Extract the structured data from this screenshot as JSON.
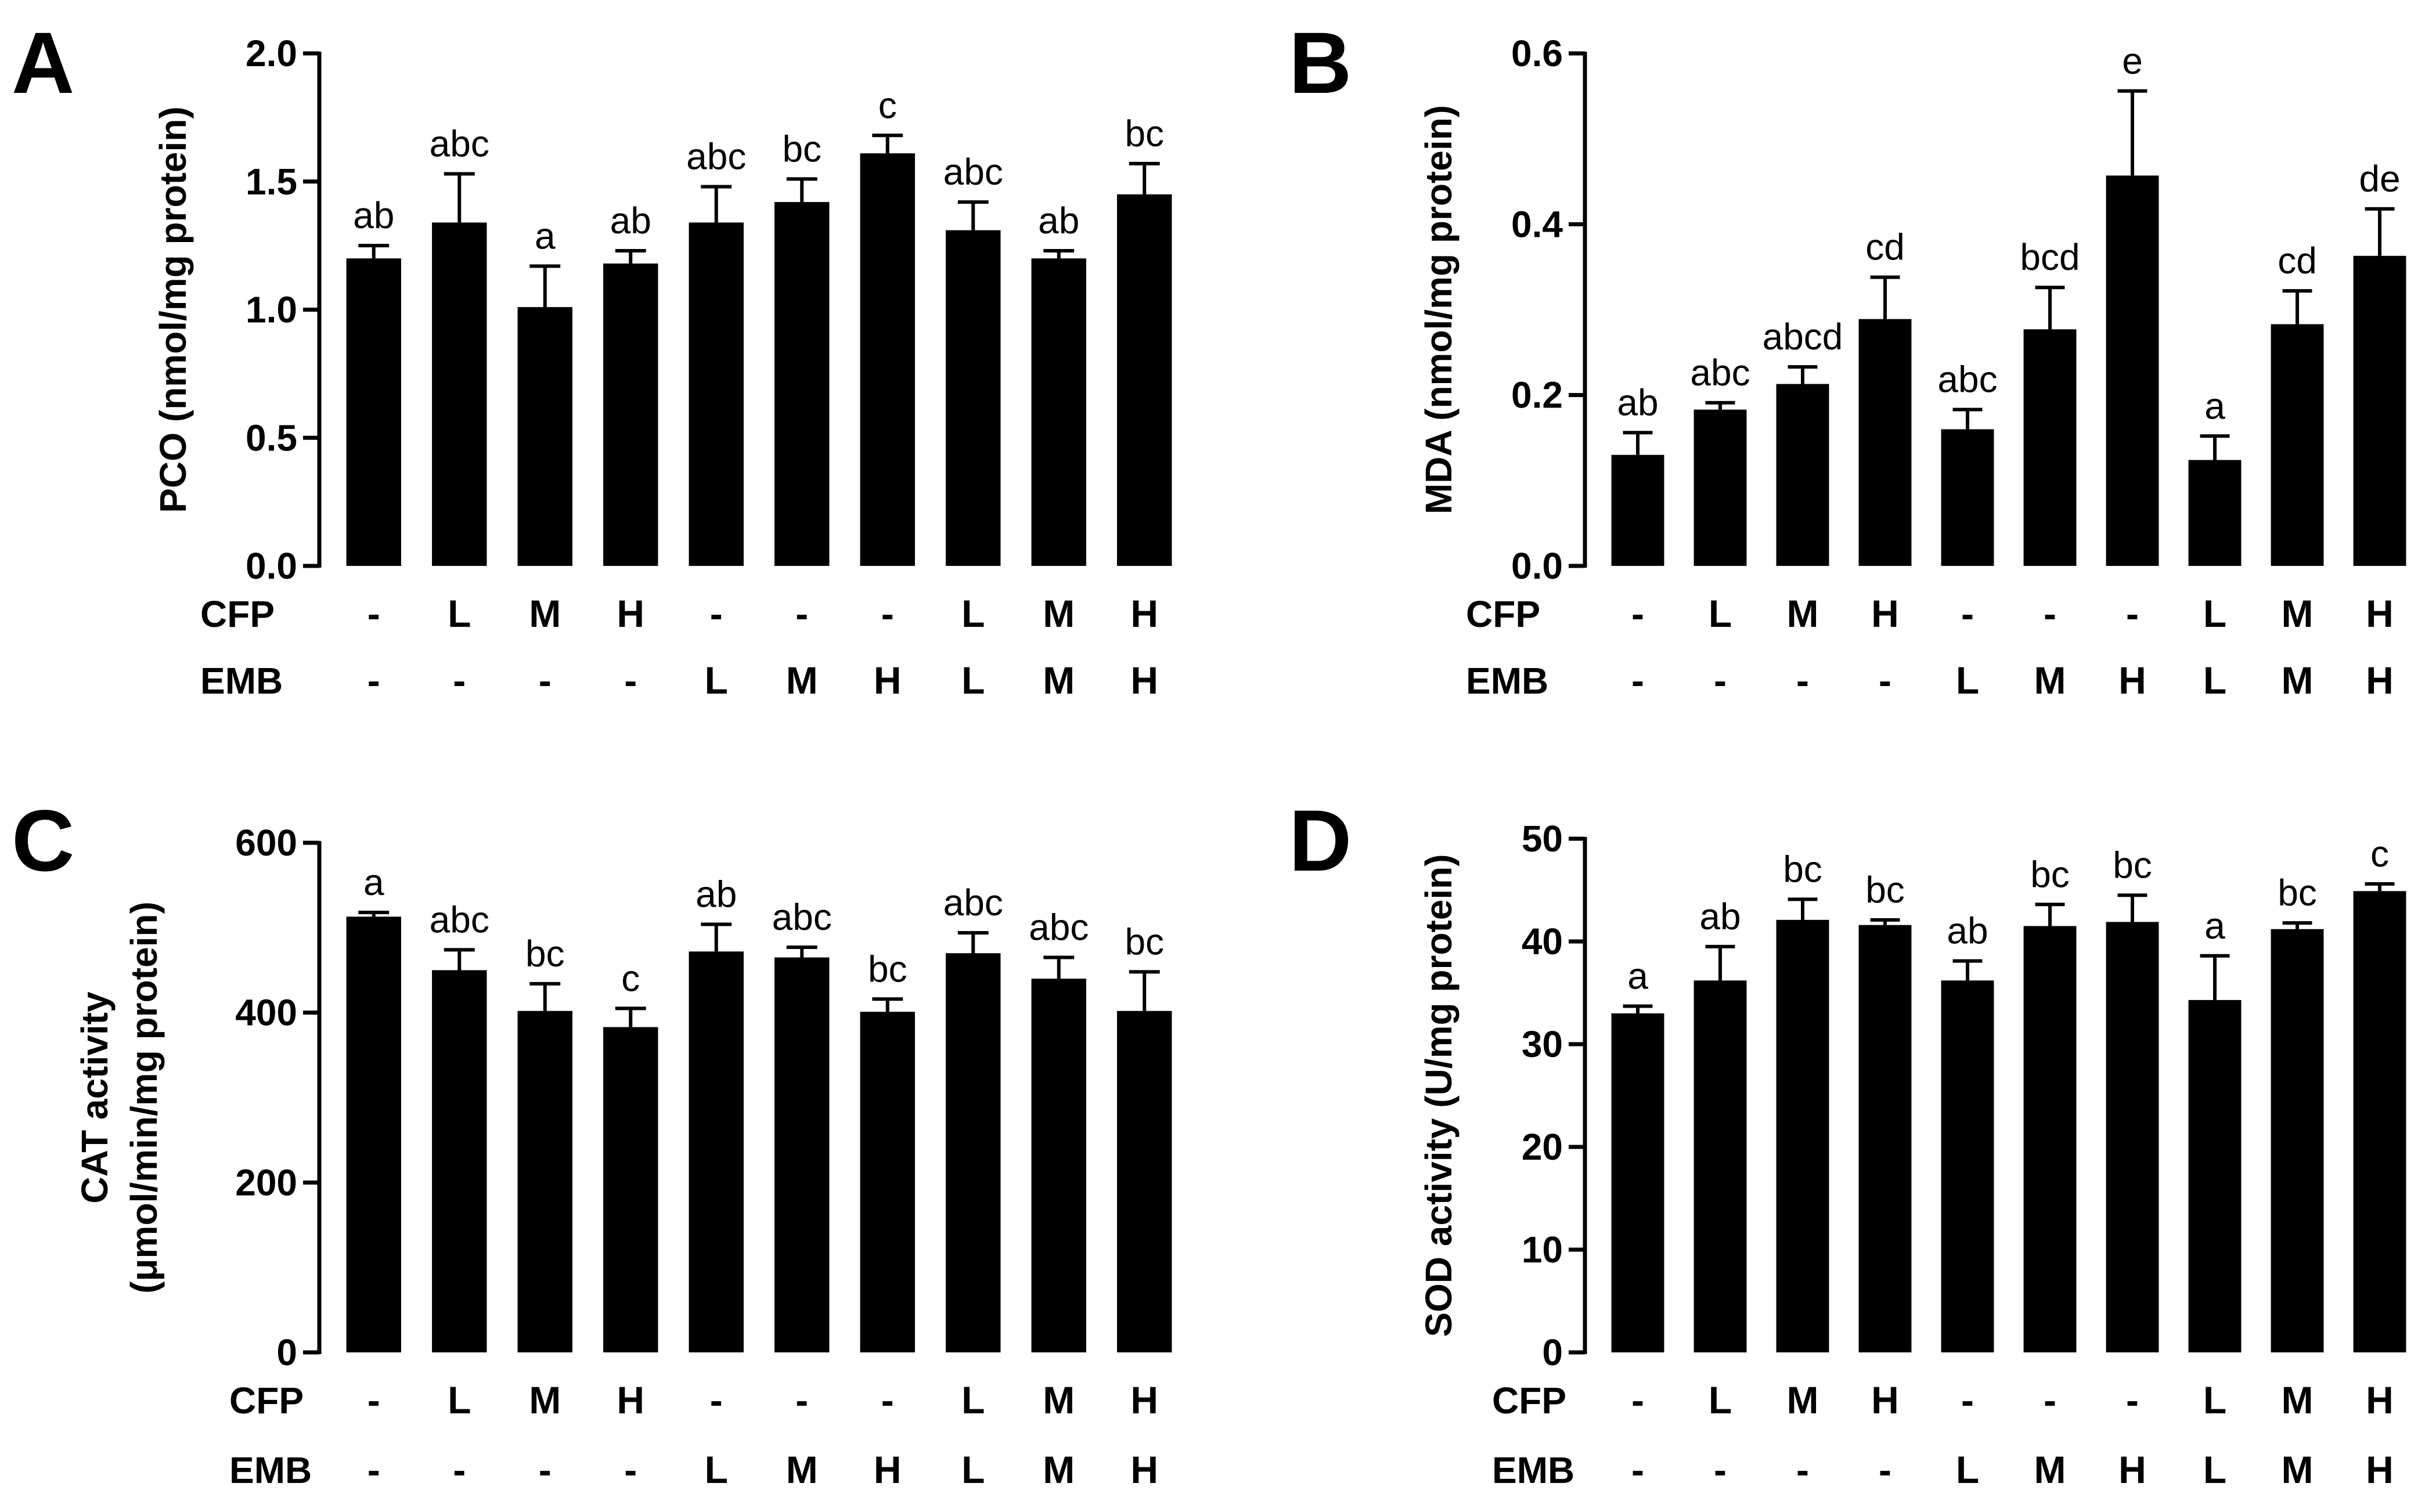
{
  "chart_data": [
    {
      "type": "bar",
      "panel": "A",
      "ylabel": "PCO (nmol/mg protein)",
      "ylabel2": "",
      "ylim": [
        0,
        2.0
      ],
      "yticks": [
        "0.0",
        "0.5",
        "1.0",
        "1.5",
        "2.0"
      ],
      "values": [
        1.2,
        1.34,
        1.01,
        1.18,
        1.34,
        1.42,
        1.61,
        1.31,
        1.2,
        1.45
      ],
      "errors": [
        0.05,
        0.19,
        0.16,
        0.05,
        0.14,
        0.09,
        0.07,
        0.11,
        0.03,
        0.12
      ],
      "significance": [
        "ab",
        "abc",
        "a",
        "ab",
        "abc",
        "bc",
        "c",
        "abc",
        "ab",
        "bc"
      ],
      "cfp_label": "CFP",
      "emb_label": "EMB",
      "cfp": [
        "-",
        "L",
        "M",
        "H",
        "-",
        "-",
        "-",
        "L",
        "M",
        "H"
      ],
      "emb": [
        "-",
        "-",
        "-",
        "-",
        "L",
        "M",
        "H",
        "L",
        "M",
        "H"
      ]
    },
    {
      "type": "bar",
      "panel": "B",
      "ylabel": "MDA (nmol/mg protein)",
      "ylabel2": "",
      "ylim": [
        0,
        0.6
      ],
      "yticks": [
        "0.0",
        "0.2",
        "0.4",
        "0.6"
      ],
      "values": [
        0.13,
        0.183,
        0.213,
        0.289,
        0.16,
        0.277,
        0.457,
        0.124,
        0.283,
        0.363
      ],
      "errors": [
        0.026,
        0.008,
        0.02,
        0.049,
        0.023,
        0.049,
        0.099,
        0.028,
        0.039,
        0.055
      ],
      "significance": [
        "ab",
        "abc",
        "abcd",
        "cd",
        "abc",
        "bcd",
        "e",
        "a",
        "cd",
        "de"
      ],
      "cfp_label": "CFP",
      "emb_label": "EMB",
      "cfp": [
        "-",
        "L",
        "M",
        "H",
        "-",
        "-",
        "-",
        "L",
        "M",
        "H"
      ],
      "emb": [
        "-",
        "-",
        "-",
        "-",
        "L",
        "M",
        "H",
        "L",
        "M",
        "H"
      ]
    },
    {
      "type": "bar",
      "panel": "C",
      "ylabel": "CAT activity",
      "ylabel2": "(μmol/min/mg protein)",
      "ylim": [
        0,
        600
      ],
      "yticks": [
        "0",
        "200",
        "400",
        "600"
      ],
      "values": [
        513,
        450,
        402,
        383,
        472,
        465,
        401,
        470,
        440,
        402
      ],
      "errors": [
        5,
        24,
        32,
        22,
        32,
        12,
        15,
        24,
        25,
        46
      ],
      "significance": [
        "a",
        "abc",
        "bc",
        "c",
        "ab",
        "abc",
        "bc",
        "abc",
        "abc",
        "bc"
      ],
      "cfp_label": "CFP",
      "emb_label": "EMB",
      "cfp": [
        "-",
        "L",
        "M",
        "H",
        "-",
        "-",
        "-",
        "L",
        "M",
        "H"
      ],
      "emb": [
        "-",
        "-",
        "-",
        "-",
        "L",
        "M",
        "H",
        "L",
        "M",
        "H"
      ]
    },
    {
      "type": "bar",
      "panel": "D",
      "ylabel": "SOD  activity (U/mg protein)",
      "ylabel2": "",
      "ylim": [
        0,
        50
      ],
      "yticks": [
        "0",
        "10",
        "20",
        "30",
        "40",
        "50"
      ],
      "values": [
        33.0,
        36.2,
        42.1,
        41.6,
        36.2,
        41.5,
        41.9,
        34.3,
        41.2,
        44.9
      ],
      "errors": [
        0.7,
        3.3,
        2.0,
        0.5,
        1.9,
        2.1,
        2.6,
        4.3,
        0.6,
        0.7
      ],
      "significance": [
        "a",
        "ab",
        "bc",
        "bc",
        "ab",
        "bc",
        "bc",
        "a",
        "bc",
        "c"
      ],
      "cfp_label": "CFP",
      "emb_label": "EMB",
      "cfp": [
        "-",
        "L",
        "M",
        "H",
        "-",
        "-",
        "-",
        "L",
        "M",
        "H"
      ],
      "emb": [
        "-",
        "-",
        "-",
        "-",
        "L",
        "M",
        "H",
        "L",
        "M",
        "H"
      ]
    }
  ]
}
